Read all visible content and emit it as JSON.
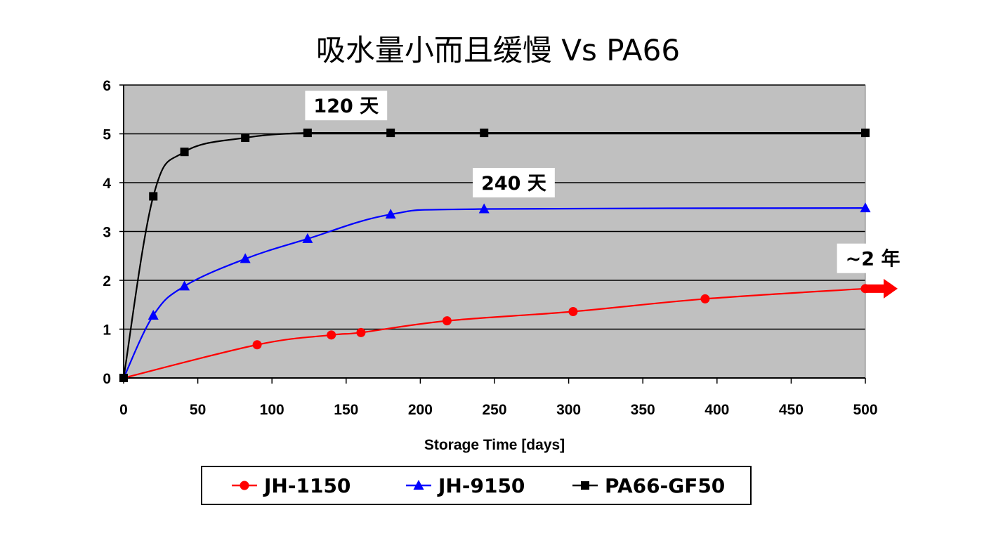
{
  "slide": {
    "title": "吸水量小而且缓慢 Vs PA66"
  },
  "chart_data": {
    "type": "line",
    "title": "",
    "xlabel": "Storage Time [days]",
    "ylabel": "",
    "xlim": [
      0,
      500
    ],
    "ylim": [
      0,
      6
    ],
    "x_ticks": [
      0,
      50,
      100,
      150,
      200,
      250,
      300,
      350,
      400,
      450,
      500
    ],
    "y_ticks": [
      0,
      1,
      2,
      3,
      4,
      5,
      6
    ],
    "grid": "horizontal",
    "legend_position": "bottom",
    "series": [
      {
        "name": "JH-1150",
        "color": "#ff0000",
        "marker": "circle",
        "x": [
          0,
          90,
          140,
          160,
          218,
          303,
          392,
          500
        ],
        "y": [
          0,
          0.68,
          0.88,
          0.93,
          1.17,
          1.36,
          1.62,
          1.83
        ]
      },
      {
        "name": "JH-9150",
        "color": "#0000ff",
        "marker": "triangle",
        "x": [
          0,
          20,
          41,
          82,
          124,
          180,
          243,
          500
        ],
        "y": [
          0,
          1.28,
          1.88,
          2.44,
          2.85,
          3.35,
          3.46,
          3.48
        ]
      },
      {
        "name": "PA66-GF50",
        "color": "#000000",
        "marker": "square",
        "x": [
          0,
          20,
          41,
          82,
          124,
          180,
          243,
          500
        ],
        "y": [
          0,
          3.72,
          4.63,
          4.92,
          5.02,
          5.02,
          5.02,
          5.02
        ]
      }
    ],
    "annotations": [
      {
        "text": "120 天",
        "x": 150,
        "y": 5.58
      },
      {
        "text": "240 天",
        "x": 263,
        "y": 4.0
      },
      {
        "text": "~2 年",
        "x": 505,
        "y": 2.45
      }
    ],
    "arrow": {
      "color": "#ff0000",
      "x_start": 500,
      "y": 1.83
    }
  }
}
